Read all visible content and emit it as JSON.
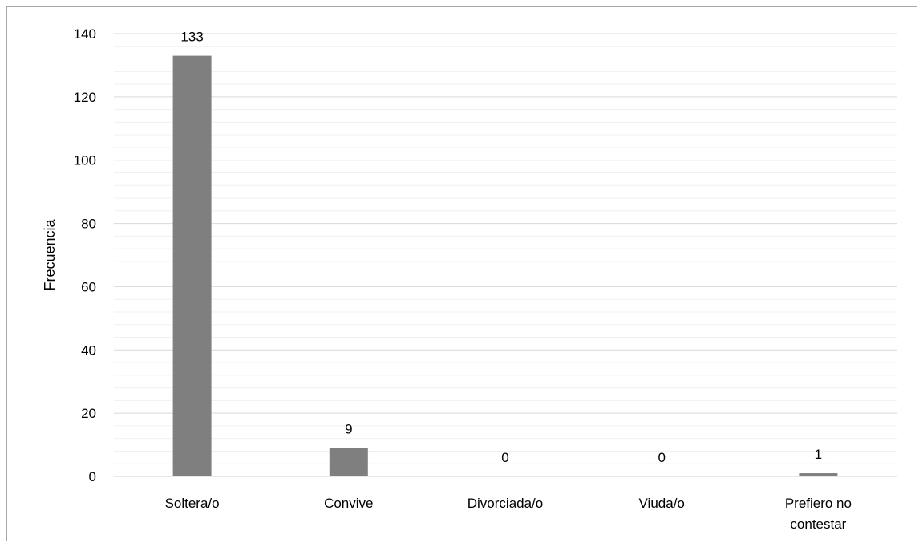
{
  "chart_data": {
    "type": "bar",
    "title": "",
    "xlabel": "",
    "ylabel": "Frecuencia",
    "categories": [
      "Soltera/o",
      "Convive",
      "Divorciada/o",
      "Viuda/o",
      "Prefiero no contestar"
    ],
    "category_lines": [
      [
        "Soltera/o"
      ],
      [
        "Convive"
      ],
      [
        "Divorciada/o"
      ],
      [
        "Viuda/o"
      ],
      [
        "Prefiero no",
        "contestar"
      ]
    ],
    "values": [
      133,
      9,
      0,
      0,
      1
    ],
    "data_labels": [
      "133",
      "9",
      "0",
      "0",
      "1"
    ],
    "ylim": [
      0,
      140
    ],
    "yticks": [
      0,
      20,
      40,
      60,
      80,
      100,
      120,
      140
    ],
    "grid": true,
    "legend": "none",
    "bar_color": "#7f7f7f",
    "major_grid_color": "#d9d9d9",
    "minor_grid_color": "#f0f0f0"
  }
}
